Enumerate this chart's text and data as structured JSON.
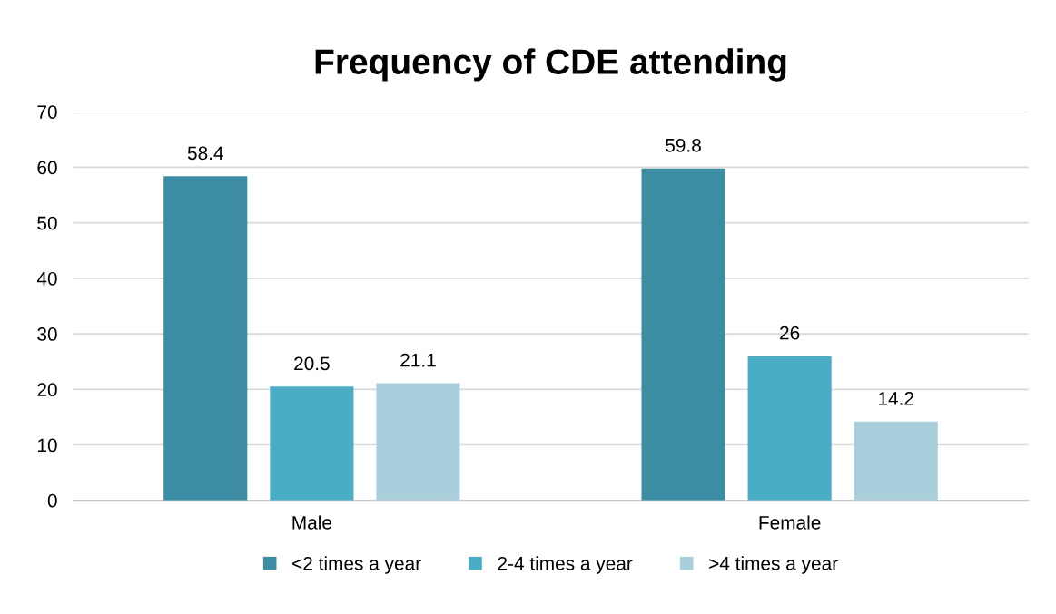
{
  "chart_data": {
    "type": "bar",
    "title": "Frequency of CDE attending",
    "categories": [
      "Male",
      "Female"
    ],
    "series": [
      {
        "name": "<2 times a year",
        "color": "#3c8ca3",
        "values": [
          58.4,
          59.8
        ]
      },
      {
        "name": "2-4 times a year",
        "color": "#4bacc6",
        "values": [
          20.5,
          26
        ]
      },
      {
        "name": ">4 times a year",
        "color": "#a9cfdc",
        "values": [
          21.1,
          14.2
        ]
      }
    ],
    "ylim": [
      0,
      70
    ],
    "yticks": [
      0,
      10,
      20,
      30,
      40,
      50,
      60,
      70
    ],
    "grid": "y",
    "legend": "bottom",
    "data_labels": true
  }
}
